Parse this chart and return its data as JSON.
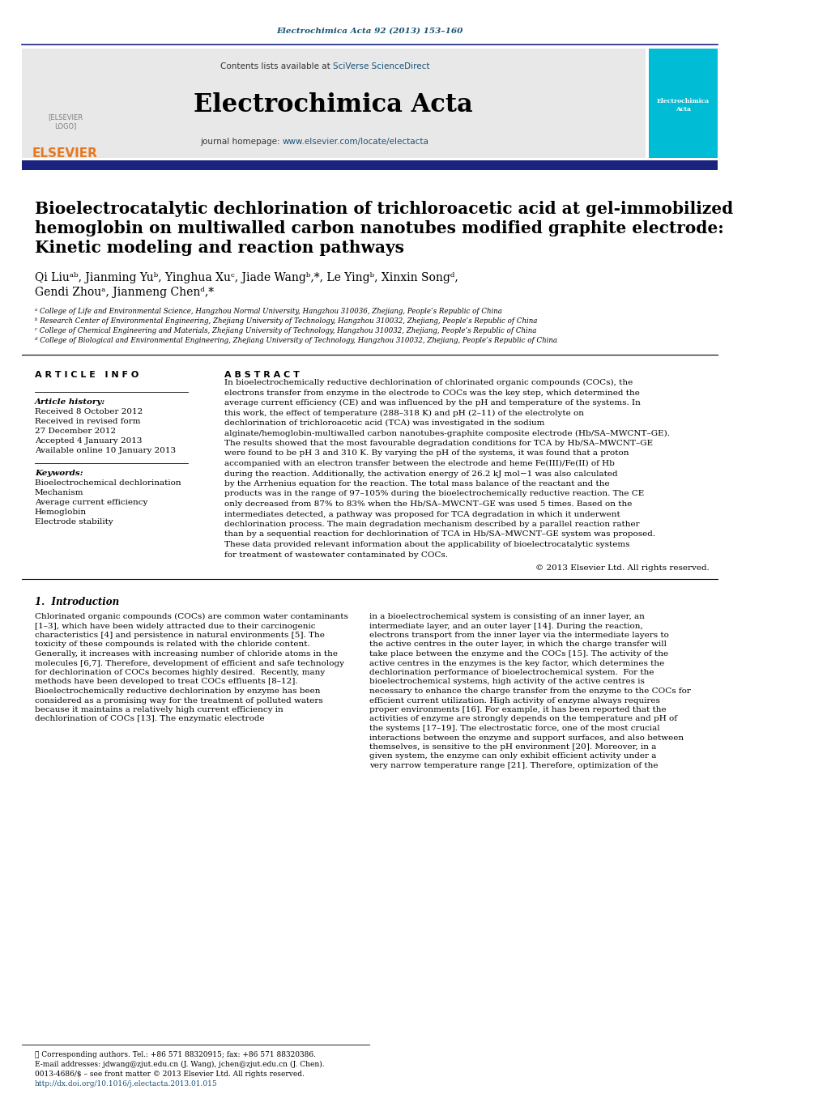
{
  "page_color": "#ffffff",
  "top_journal_ref": "Electrochimica Acta 92 (2013) 153–160",
  "top_journal_ref_color": "#1a5276",
  "journal_name": "Electrochimica Acta",
  "header_bg": "#e8e8e8",
  "header_text1": "Contents lists available at ",
  "header_link1": "SciVerse ScienceDirect",
  "header_text2": "journal homepage: ",
  "header_link2": "www.elsevier.com/locate/electacta",
  "elsevier_color": "#e87722",
  "dark_blue": "#1a237e",
  "article_title_line1": "Bioelectrocatalytic dechlorination of trichloroacetic acid at gel-immobilized",
  "article_title_line2": "hemoglobin on multiwalled carbon nanotubes modified graphite electrode:",
  "article_title_line3": "Kinetic modeling and reaction pathways",
  "authors": "Qi Liuᵃᵇ, Jianming Yuᵇ, Yinghua Xuᶜ, Jiade Wangᵇ,*, Le Yingᵇ, Xinxin Songᵈ,",
  "authors2": "Gendi Zhouᵃ, Jianmeng Chenᵈ,*",
  "affil_a": "ᵃ College of Life and Environmental Science, Hangzhou Normal University, Hangzhou 310036, Zhejiang, People’s Republic of China",
  "affil_b": "ᵇ Research Center of Environmental Engineering, Zhejiang University of Technology, Hangzhou 310032, Zhejiang, People’s Republic of China",
  "affil_c": "ᶜ College of Chemical Engineering and Materials, Zhejiang University of Technology, Hangzhou 310032, Zhejiang, People’s Republic of China",
  "affil_d": "ᵈ College of Biological and Environmental Engineering, Zhejiang University of Technology, Hangzhou 310032, Zhejiang, People’s Republic of China",
  "article_info_title": "A R T I C L E   I N F O",
  "abstract_title": "A B S T R A C T",
  "article_history_title": "Article history:",
  "received1": "Received 8 October 2012",
  "received2": "Received in revised form",
  "received3": "27 December 2012",
  "accepted": "Accepted 4 January 2013",
  "available": "Available online 10 January 2013",
  "keywords_title": "Keywords:",
  "kw1": "Bioelectrochemical dechlorination",
  "kw2": "Mechanism",
  "kw3": "Average current efficiency",
  "kw4": "Hemoglobin",
  "kw5": "Electrode stability",
  "abstract_text": "In bioelectrochemically reductive dechlorination of chlorinated organic compounds (COCs), the electrons transfer from enzyme in the electrode to COCs was the key step, which determined the average current efficiency (CE) and was influenced by the pH and temperature of the systems. In this work, the effect of temperature (288–318 K) and pH (2–11) of the electrolyte on dechlorination of trichloroacetic acid (TCA) was investigated in the sodium alginate/hemoglobin-multiwalled carbon nanotubes-graphite composite electrode (Hb/SA–MWCNT–GE). The results showed that the most favourable degradation conditions for TCA by Hb/SA–MWCNT–GE were found to be pH 3 and 310 K. By varying the pH of the systems, it was found that a proton accompanied with an electron transfer between the electrode and heme Fe(III)/Fe(II) of Hb during the reaction. Additionally, the activation energy of 26.2 kJ mol−1 was also calculated by the Arrhenius equation for the reaction. The total mass balance of the reactant and the products was in the range of 97–105% during the bioelectrochemically reductive reaction. The CE only decreased from 87% to 83% when the Hb/SA–MWCNT–GE was used 5 times. Based on the intermediates detected, a pathway was proposed for TCA degradation in which it underwent dechlorination process. The main degradation mechanism described by a parallel reaction rather than by a sequential reaction for dechlorination of TCA in Hb/SA–MWCNT–GE system was proposed. These data provided relevant information about the applicability of bioelectrocatalytic systems for treatment of wastewater contaminated by COCs.",
  "copyright": "© 2013 Elsevier Ltd. All rights reserved.",
  "intro_title": "1.  Introduction",
  "intro_col1": "Chlorinated organic compounds (COCs) are common water contaminants [1–3], which have been widely attracted due to their carcinogenic characteristics [4] and persistence in natural environments [5]. The toxicity of these compounds is related with the chloride content. Generally, it increases with increasing number of chloride atoms in the molecules [6,7]. Therefore, development of efficient and safe technology for dechlorination of COCs becomes highly desired.\n\nRecently, many methods have been developed to treat COCs effluents [8–12]. Bioelectrochemically reductive dechlorination by enzyme has been considered as a promising way for the treatment of polluted waters because it maintains a relatively high current efficiency in dechlorination of COCs [13]. The enzymatic electrode",
  "intro_col2": "in a bioelectrochemical system is consisting of an inner layer, an intermediate layer, and an outer layer [14]. During the reaction, electrons transport from the inner layer via the intermediate layers to the active centres in the outer layer, in which the charge transfer will take place between the enzyme and the COCs [15]. The activity of the active centres in the enzymes is the key factor, which determines the dechlorination performance of bioelectrochemical system.\n\nFor the bioelectrochemical systems, high activity of the active centres is necessary to enhance the charge transfer from the enzyme to the COCs for efficient current utilization. High activity of enzyme always requires proper environments [16]. For example, it has been reported that the activities of enzyme are strongly depends on the temperature and pH of the systems [17–19]. The electrostatic force, one of the most crucial interactions between the enzyme and support surfaces, and also between themselves, is sensitive to the pH environment [20]. Moreover, in a given system, the enzyme can only exhibit efficient activity under a very narrow temperature range [21]. Therefore, optimization of the",
  "footnote1": "★ Corresponding authors. Tel.: +86 571 88320915; fax: +86 571 88320386.",
  "footnote2": "E-mail addresses: jdwang@zjut.edu.cn (J. Wang), jchen@zjut.edu.cn (J. Chen).",
  "issn": "0013-4686/$ – see front matter © 2013 Elsevier Ltd. All rights reserved.",
  "doi": "http://dx.doi.org/10.1016/j.electacta.2013.01.015"
}
